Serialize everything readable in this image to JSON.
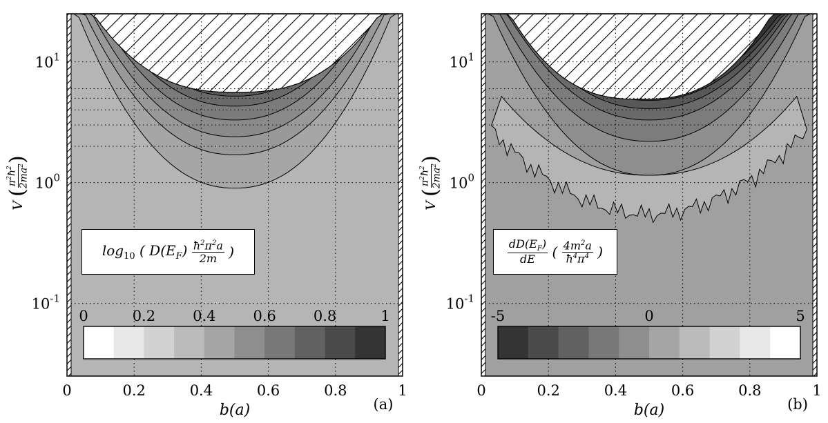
{
  "chart_data": [
    {
      "type": "contour",
      "panel_label": "(a)",
      "xlabel": "b(a)",
      "ylabel": "V (π²ħ²/2ma²)",
      "xlim": [
        0,
        1
      ],
      "ylim": [
        0.025,
        25
      ],
      "yscale": "log",
      "x_ticks": [
        "0",
        "0.2",
        "0.4",
        "0.6",
        "0.8",
        "1"
      ],
      "y_ticks": [
        "10⁻¹",
        "10⁰",
        "10¹"
      ],
      "colorbar": {
        "ticks": [
          "0",
          "0.2",
          "0.4",
          "0.6",
          "0.8",
          "1"
        ],
        "range": [
          0,
          1
        ],
        "levels": 10,
        "direction": "light-to-dark"
      },
      "legend_text": "log₁₀ ( D(E_F) ħ²π²a / 2m )",
      "hatched_region": "excluded (large V near center and walls at b=0, b=1)"
    },
    {
      "type": "contour",
      "panel_label": "(b)",
      "xlabel": "b(a)",
      "ylabel": "V (π²ħ²/2ma²)",
      "xlim": [
        0,
        1
      ],
      "ylim": [
        0.025,
        25
      ],
      "yscale": "log",
      "x_ticks": [
        "0",
        "0.2",
        "0.4",
        "0.6",
        "0.8",
        "1"
      ],
      "y_ticks": [
        "10⁻¹",
        "10⁰",
        "10¹"
      ],
      "colorbar": {
        "ticks": [
          "-5",
          "0",
          "5"
        ],
        "range": [
          -5,
          5
        ],
        "levels": 10,
        "direction": "dark-to-light"
      },
      "legend_text": "dD(E_F)/dE ( 4m²a / ħ⁴π⁴ )",
      "hatched_region": "excluded (large V near center and walls at b=0, b=1)"
    }
  ],
  "colors": {
    "background_a": "#b5b5b5",
    "background_b": "#a0a0a0",
    "hatch_fill": "#ffffff",
    "ink": "#000000"
  }
}
